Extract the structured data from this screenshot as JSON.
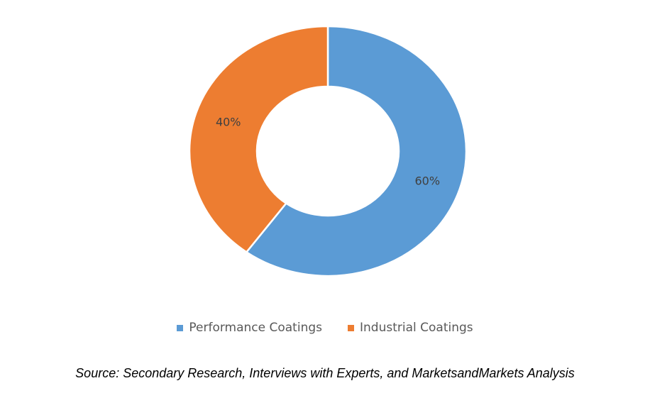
{
  "chart_data": {
    "type": "pie",
    "subtype": "donut",
    "categories": [
      "Performance Coatings",
      "Industrial Coatings"
    ],
    "values": [
      60,
      40
    ],
    "data_labels": [
      "60%",
      "40%"
    ],
    "colors": [
      "#5B9BD5",
      "#ED7D31"
    ],
    "legend_position": "bottom",
    "title": ""
  },
  "source": "Source: Secondary Research, Interviews with Experts, and MarketsandMarkets Analysis"
}
